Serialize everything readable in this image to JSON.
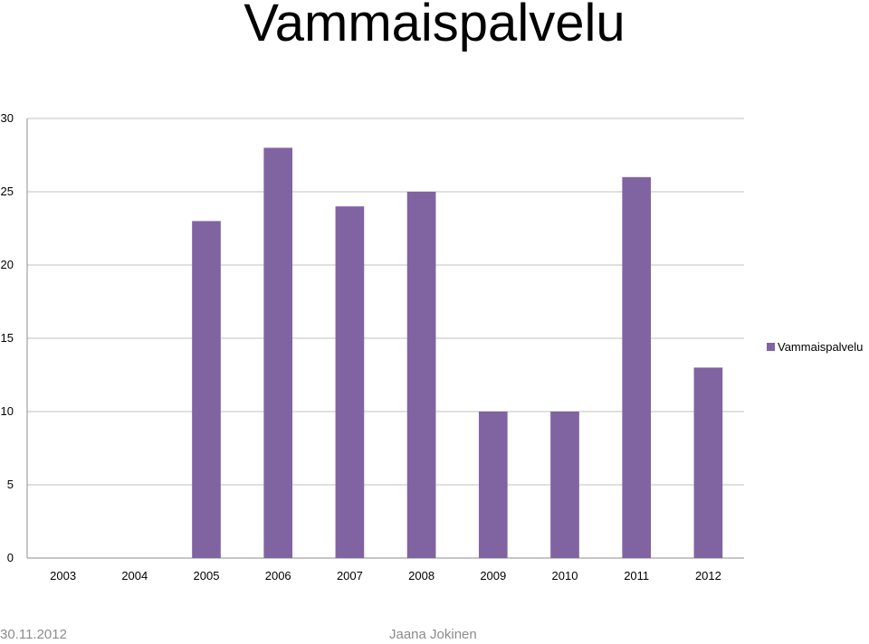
{
  "slide": {
    "title": "Vammaispalvelu",
    "footer_date": "30.11.2012",
    "footer_author": "Jaana Jokinen"
  },
  "chart_data": {
    "type": "bar",
    "title": "",
    "xlabel": "",
    "ylabel": "",
    "categories": [
      "2003",
      "2004",
      "2005",
      "2006",
      "2007",
      "2008",
      "2009",
      "2010",
      "2011",
      "2012"
    ],
    "series": [
      {
        "name": "Vammaispalvelu",
        "values": [
          0,
          0,
          23,
          28,
          24,
          25,
          10,
          10,
          26,
          13
        ],
        "color": "#8064a2"
      }
    ],
    "ylim": [
      0,
      30
    ],
    "yticks": [
      0,
      5,
      10,
      15,
      20,
      25,
      30
    ],
    "grid": true,
    "gridline_color": "#c0c0c0",
    "legend_position": "right"
  }
}
